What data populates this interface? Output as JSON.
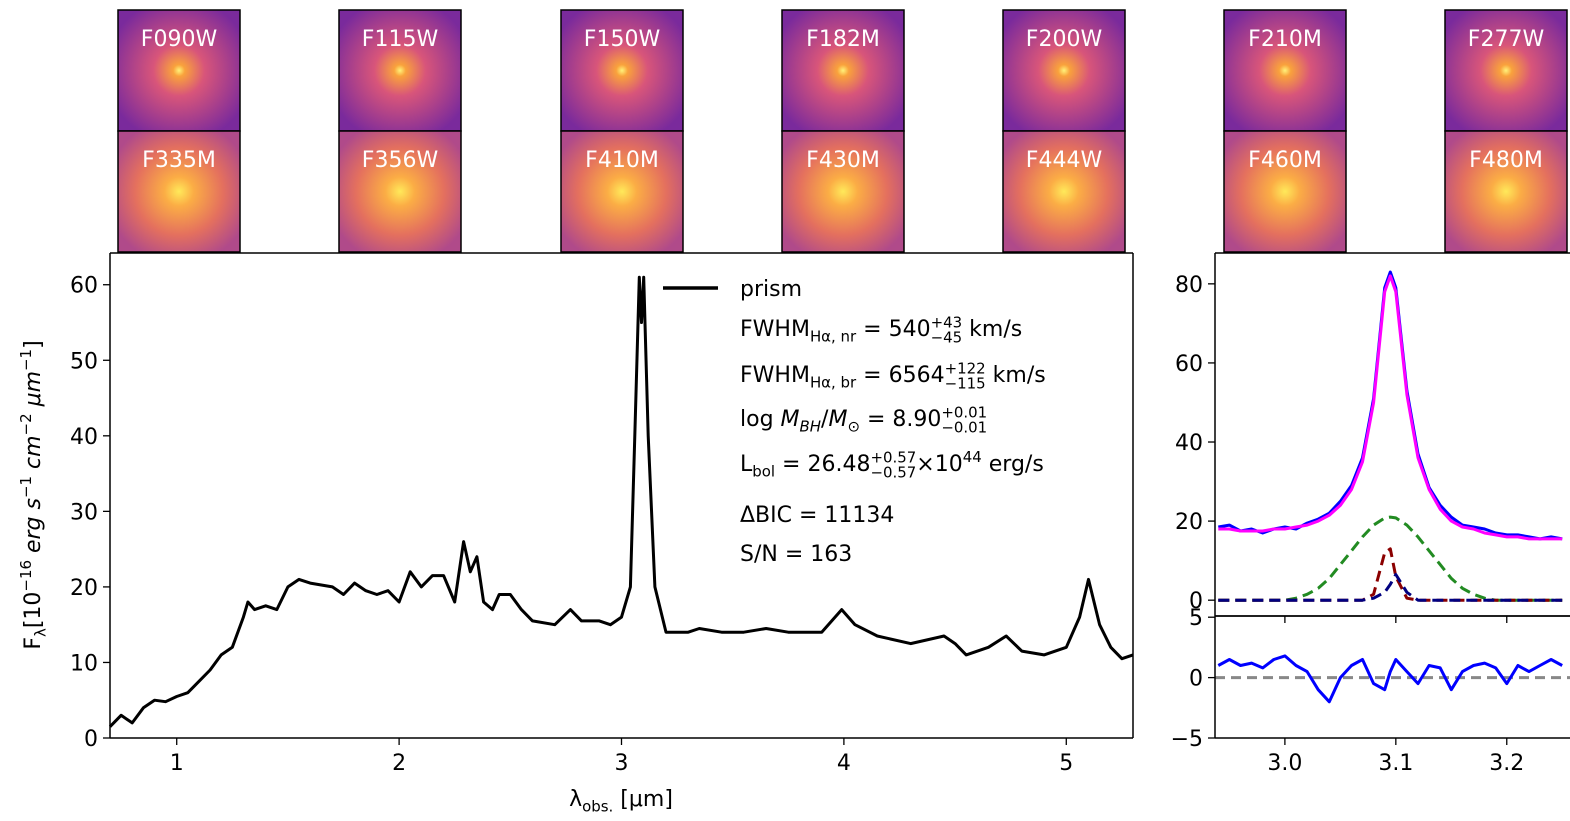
{
  "thumbnails": [
    [
      "F090W",
      "F115W",
      "F150W",
      "F182M",
      "F200W",
      "F210M",
      "F277W"
    ],
    [
      "F335M",
      "F356W",
      "F410M",
      "F430M",
      "F444W",
      "F460M",
      "F480M"
    ]
  ],
  "chart_data": [
    {
      "type": "line",
      "xlabel": [
        {
          "text": "λ"
        },
        {
          "sub": "obs."
        },
        {
          "text": " [μm]"
        }
      ],
      "ylabel": [
        {
          "text": "F"
        },
        {
          "sub": "λ"
        },
        {
          "text": "[10"
        },
        {
          "sup": "−16"
        },
        {
          "text": " erg s",
          "italic": true
        },
        {
          "sup": "−1"
        },
        {
          "text": " cm",
          "italic": true
        },
        {
          "sup": "−2"
        },
        {
          "text": " μm",
          "italic": true
        },
        {
          "sup": "−1"
        },
        {
          "text": "]"
        }
      ],
      "xlim": [
        0.7,
        5.3
      ],
      "ylim": [
        0,
        64.2
      ],
      "xticks": [
        1,
        2,
        3,
        4,
        5
      ],
      "yticks": [
        0,
        10,
        20,
        30,
        40,
        50,
        60
      ],
      "x": [
        0.7,
        0.75,
        0.8,
        0.85,
        0.9,
        0.95,
        1.0,
        1.05,
        1.1,
        1.15,
        1.2,
        1.25,
        1.3,
        1.32,
        1.35,
        1.4,
        1.45,
        1.5,
        1.55,
        1.6,
        1.7,
        1.75,
        1.8,
        1.85,
        1.9,
        1.95,
        2.0,
        2.05,
        2.1,
        2.15,
        2.2,
        2.25,
        2.29,
        2.32,
        2.35,
        2.38,
        2.42,
        2.45,
        2.5,
        2.55,
        2.6,
        2.7,
        2.77,
        2.82,
        2.9,
        2.95,
        3.0,
        3.04,
        3.06,
        3.08,
        3.09,
        3.1,
        3.12,
        3.15,
        3.2,
        3.3,
        3.35,
        3.45,
        3.55,
        3.65,
        3.75,
        3.9,
        3.99,
        4.05,
        4.15,
        4.3,
        4.45,
        4.5,
        4.55,
        4.65,
        4.73,
        4.8,
        4.9,
        5.0,
        5.06,
        5.1,
        5.15,
        5.2,
        5.25,
        5.3
      ],
      "series": [
        {
          "name": "prism",
          "color": "#000000",
          "values": [
            1.5,
            3,
            2,
            4,
            5,
            4.8,
            5.5,
            6,
            7.5,
            9,
            11,
            12,
            16,
            18,
            17,
            17.5,
            17,
            20,
            21,
            20.5,
            20,
            19,
            20.5,
            19.5,
            19,
            19.5,
            18,
            22,
            20,
            21.5,
            21.5,
            18,
            26,
            22,
            24,
            18,
            17,
            19,
            19,
            17,
            15.5,
            15,
            17,
            15.5,
            15.5,
            15,
            16,
            20,
            40,
            61,
            55,
            61,
            40,
            20,
            14,
            14,
            14.5,
            14,
            14,
            14.5,
            14,
            14,
            17,
            15,
            13.5,
            12.5,
            13.5,
            12.5,
            11,
            12,
            13.5,
            11.5,
            11,
            12,
            16,
            21,
            15,
            12,
            10.5,
            11
          ]
        }
      ],
      "annotations": [
        [
          {
            "text": "FWHM"
          },
          {
            "sub": "Hα, nr"
          },
          {
            "text": " = 540"
          },
          {
            "sup": "+43",
            "sub": "−45"
          },
          {
            "text": " km/s"
          }
        ],
        [
          {
            "text": "FWHM"
          },
          {
            "sub": "Hα, br"
          },
          {
            "text": " = 6564"
          },
          {
            "sup": "+122",
            "sub": "−115"
          },
          {
            "text": " km/s"
          }
        ],
        [
          {
            "text": "log "
          },
          {
            "text": "M",
            "italic": true
          },
          {
            "sub": "BH",
            "italic": true
          },
          {
            "text": "/"
          },
          {
            "text": "M",
            "italic": true
          },
          {
            "sub": "⊙"
          },
          {
            "text": " = 8.90"
          },
          {
            "sup": "+0.01",
            "sub": "−0.01"
          }
        ],
        [
          {
            "text": "L"
          },
          {
            "sub": "bol"
          },
          {
            "text": " = 26.48"
          },
          {
            "sup": "+0.57",
            "sub": "−0.57"
          },
          {
            "text": "×10"
          },
          {
            "sup": "44"
          },
          {
            "text": " erg/s"
          }
        ],
        [
          {
            "text": "ΔBIC = 11134"
          }
        ],
        [
          {
            "text": "S/N = 163"
          }
        ]
      ]
    },
    {
      "type": "line",
      "xlim": [
        2.937,
        3.257
      ],
      "ylim": [
        -4,
        87.8
      ],
      "xticks": [
        3,
        3.1,
        3.2
      ],
      "yticks": [
        0,
        20,
        40,
        60,
        80
      ],
      "x": [
        2.94,
        2.95,
        2.96,
        2.97,
        2.98,
        2.99,
        3.0,
        3.01,
        3.02,
        3.03,
        3.04,
        3.05,
        3.06,
        3.07,
        3.08,
        3.09,
        3.095,
        3.1,
        3.11,
        3.12,
        3.13,
        3.14,
        3.15,
        3.16,
        3.17,
        3.18,
        3.19,
        3.2,
        3.21,
        3.22,
        3.23,
        3.24,
        3.25
      ],
      "series": [
        {
          "color": "#0000ff",
          "values": [
            18.5,
            19,
            17.5,
            18,
            17,
            18,
            18.5,
            18,
            19.5,
            20.5,
            22,
            25,
            29,
            36,
            51,
            79,
            83,
            79,
            53,
            37,
            28.5,
            24,
            21,
            19,
            18.5,
            18,
            17,
            16.5,
            16.5,
            16,
            15.5,
            16,
            15.5
          ]
        },
        {
          "color": "#ff00ff",
          "values": [
            18,
            18,
            17.5,
            17.5,
            17.5,
            18,
            18,
            18.5,
            19,
            20,
            21.5,
            24,
            28,
            35,
            50,
            78,
            82,
            78,
            52,
            36,
            28,
            23,
            20,
            18.5,
            18,
            17,
            16.5,
            16,
            16,
            15.5,
            15.5,
            15.5,
            15.5
          ]
        },
        {
          "color": "#228b22",
          "dashed": true,
          "values": [
            0,
            0,
            0,
            0,
            0,
            0,
            0,
            0.5,
            1.5,
            3,
            5.5,
            9,
            12.5,
            16,
            19,
            20.8,
            21,
            20.8,
            19,
            16,
            12.5,
            9,
            5.5,
            3,
            1.5,
            0.5,
            0,
            0,
            0,
            0,
            0,
            0,
            0
          ]
        },
        {
          "color": "#8b0000",
          "dashed": true,
          "values": [
            0,
            0,
            0,
            0,
            0,
            0,
            0,
            0,
            0,
            0,
            0,
            0,
            0,
            0,
            1.5,
            12,
            13,
            6,
            0.5,
            0,
            0,
            0,
            0,
            0,
            0,
            0,
            0,
            0,
            0,
            0,
            0,
            0,
            0
          ]
        },
        {
          "color": "#000080",
          "dashed": true,
          "values": [
            0,
            0,
            0,
            0,
            0,
            0,
            0,
            0,
            0,
            0,
            0,
            0,
            0,
            0,
            0.5,
            2,
            4,
            6.5,
            2,
            0,
            0,
            0,
            0,
            0,
            0,
            0,
            0,
            0,
            0,
            0,
            0,
            0,
            0
          ]
        }
      ]
    },
    {
      "type": "line",
      "xlim": [
        2.937,
        3.257
      ],
      "ylim": [
        -5,
        5.1
      ],
      "xticks": [
        {
          "value": 3,
          "label": "3.0"
        },
        3.1,
        3.2
      ],
      "yticks": [
        {
          "value": -5,
          "label": "−5"
        },
        0,
        5
      ],
      "hline": 0,
      "x": [
        2.94,
        2.95,
        2.96,
        2.97,
        2.98,
        2.99,
        3.0,
        3.01,
        3.02,
        3.03,
        3.04,
        3.05,
        3.06,
        3.07,
        3.08,
        3.09,
        3.095,
        3.1,
        3.11,
        3.12,
        3.13,
        3.14,
        3.15,
        3.16,
        3.17,
        3.18,
        3.19,
        3.2,
        3.21,
        3.22,
        3.23,
        3.24,
        3.25
      ],
      "series": [
        {
          "color": "#0000ff",
          "values": [
            1,
            1.5,
            1,
            1.2,
            0.8,
            1.5,
            1.8,
            1,
            0.5,
            -1,
            -2,
            0,
            1,
            1.5,
            -0.5,
            -1,
            0.5,
            1.5,
            0.5,
            -0.5,
            1,
            0.8,
            -1,
            0.5,
            1,
            1.2,
            0.8,
            -0.5,
            1,
            0.5,
            1,
            1.5,
            1
          ]
        }
      ]
    }
  ]
}
